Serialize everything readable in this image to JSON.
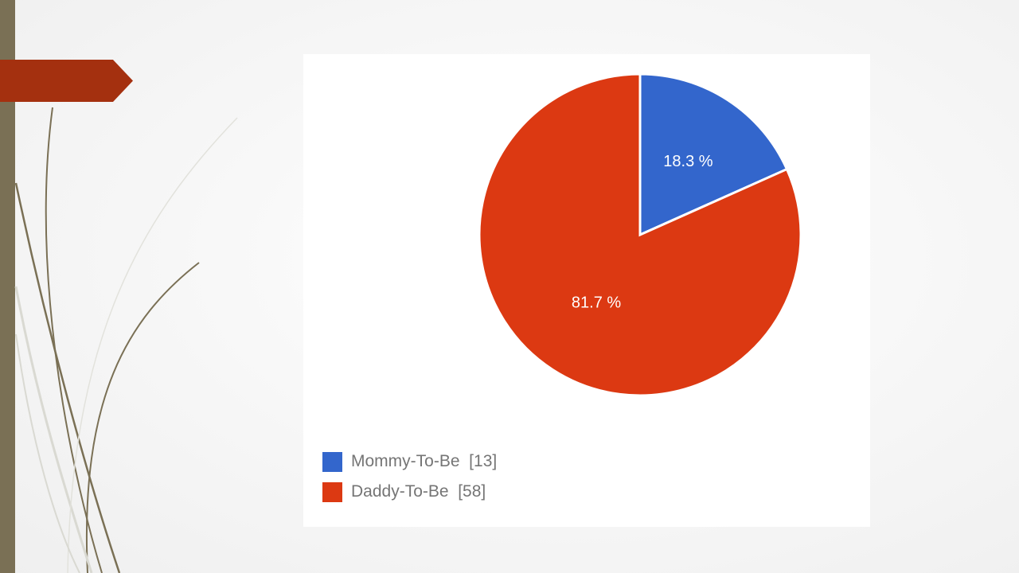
{
  "chart_data": {
    "type": "pie",
    "slices": [
      {
        "label": "Mommy-To-Be",
        "count": 13,
        "percent": 18.3,
        "percent_label": "18.3 %",
        "color": "#3366cc"
      },
      {
        "label": "Daddy-To-Be",
        "count": 58,
        "percent": 81.7,
        "percent_label": "81.7 %",
        "color": "#dc3912"
      }
    ],
    "legend": {
      "placement": "bottom-left",
      "items": [
        {
          "text": "Mommy-To-Be  [13]",
          "color": "#3366cc"
        },
        {
          "text": "Daddy-To-Be  [58]",
          "color": "#dc3912"
        }
      ]
    }
  },
  "theme": {
    "accent_bar": "#7a7055",
    "ribbon": "#a4300f",
    "curve_dark": "#7a7055",
    "curve_light": "#d9d9d2"
  }
}
